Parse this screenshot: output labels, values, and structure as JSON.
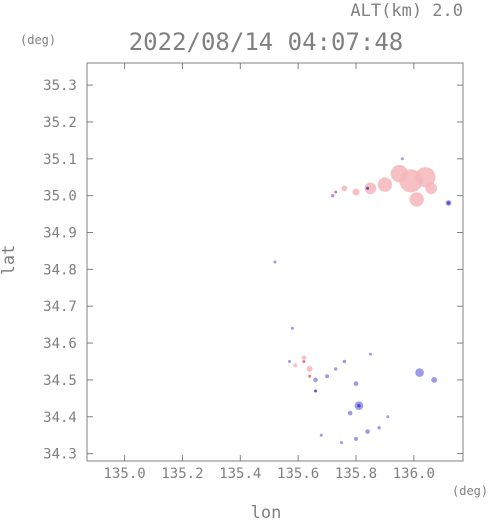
{
  "chart_data": {
    "type": "scatter",
    "title": "2022/08/14 04:07:48",
    "subtitle": "ALT(km) 2.0",
    "xlabel": "lon",
    "ylabel": "lat",
    "xunit": "(deg)",
    "yunit": "(deg)",
    "xlim": [
      134.87,
      136.17
    ],
    "ylim": [
      34.28,
      35.36
    ],
    "xticks": [
      "135.0",
      "135.2",
      "135.4",
      "135.6",
      "135.8",
      "136.0"
    ],
    "xtick_values": [
      135.0,
      135.2,
      135.4,
      135.6,
      135.8,
      136.0
    ],
    "yticks": [
      "34.3",
      "34.4",
      "34.5",
      "34.6",
      "34.7",
      "34.8",
      "34.9",
      "35.0",
      "35.1",
      "35.2",
      "35.3"
    ],
    "ytick_values": [
      34.3,
      34.4,
      34.5,
      34.6,
      34.7,
      34.8,
      34.9,
      35.0,
      35.1,
      35.2,
      35.3
    ],
    "grid": false,
    "colors": {
      "frame": "#808080",
      "positive": "#f6b6ba",
      "positive_strong": "#e8606a",
      "negative": "#8a8ae6",
      "negative_strong": "#3a3ac8"
    },
    "series": [
      {
        "color": "#f6b6ba",
        "points": [
          {
            "x": 135.99,
            "y": 35.04,
            "r": 0.04
          },
          {
            "x": 136.04,
            "y": 35.05,
            "r": 0.035
          },
          {
            "x": 135.95,
            "y": 35.06,
            "r": 0.03
          },
          {
            "x": 135.9,
            "y": 35.03,
            "r": 0.025
          },
          {
            "x": 135.85,
            "y": 35.02,
            "r": 0.02
          },
          {
            "x": 136.01,
            "y": 34.99,
            "r": 0.025
          },
          {
            "x": 136.06,
            "y": 35.02,
            "r": 0.02
          },
          {
            "x": 135.8,
            "y": 35.01,
            "r": 0.012
          },
          {
            "x": 135.76,
            "y": 35.02,
            "r": 0.01
          },
          {
            "x": 135.64,
            "y": 34.53,
            "r": 0.01
          },
          {
            "x": 135.62,
            "y": 34.56,
            "r": 0.008
          },
          {
            "x": 135.59,
            "y": 34.54,
            "r": 0.007
          }
        ]
      },
      {
        "color": "#8a8ae6",
        "points": [
          {
            "x": 136.12,
            "y": 34.98,
            "r": 0.01
          },
          {
            "x": 135.96,
            "y": 35.1,
            "r": 0.005
          },
          {
            "x": 135.72,
            "y": 35.0,
            "r": 0.006
          },
          {
            "x": 135.52,
            "y": 34.82,
            "r": 0.004
          },
          {
            "x": 135.58,
            "y": 34.64,
            "r": 0.004
          },
          {
            "x": 135.57,
            "y": 34.55,
            "r": 0.005
          },
          {
            "x": 135.66,
            "y": 34.5,
            "r": 0.008
          },
          {
            "x": 135.7,
            "y": 34.51,
            "r": 0.007
          },
          {
            "x": 135.73,
            "y": 34.53,
            "r": 0.006
          },
          {
            "x": 135.76,
            "y": 34.55,
            "r": 0.006
          },
          {
            "x": 135.8,
            "y": 34.49,
            "r": 0.008
          },
          {
            "x": 135.85,
            "y": 34.57,
            "r": 0.005
          },
          {
            "x": 136.02,
            "y": 34.52,
            "r": 0.015
          },
          {
            "x": 136.07,
            "y": 34.5,
            "r": 0.01
          },
          {
            "x": 135.81,
            "y": 34.43,
            "r": 0.015
          },
          {
            "x": 135.78,
            "y": 34.41,
            "r": 0.008
          },
          {
            "x": 135.84,
            "y": 34.36,
            "r": 0.008
          },
          {
            "x": 135.8,
            "y": 34.34,
            "r": 0.007
          },
          {
            "x": 135.88,
            "y": 34.37,
            "r": 0.006
          },
          {
            "x": 135.75,
            "y": 34.33,
            "r": 0.005
          },
          {
            "x": 135.91,
            "y": 34.4,
            "r": 0.005
          },
          {
            "x": 135.68,
            "y": 34.35,
            "r": 0.004
          }
        ]
      },
      {
        "color": "#e8606a",
        "points": [
          {
            "x": 135.62,
            "y": 34.55,
            "r": 0.004
          },
          {
            "x": 135.73,
            "y": 35.01,
            "r": 0.004
          },
          {
            "x": 135.64,
            "y": 34.51,
            "r": 0.003
          }
        ]
      },
      {
        "color": "#3a3ac8",
        "points": [
          {
            "x": 135.81,
            "y": 34.43,
            "r": 0.006
          },
          {
            "x": 136.12,
            "y": 34.98,
            "r": 0.004
          },
          {
            "x": 135.84,
            "y": 35.02,
            "r": 0.003
          },
          {
            "x": 135.66,
            "y": 34.47,
            "r": 0.003
          }
        ]
      }
    ]
  }
}
